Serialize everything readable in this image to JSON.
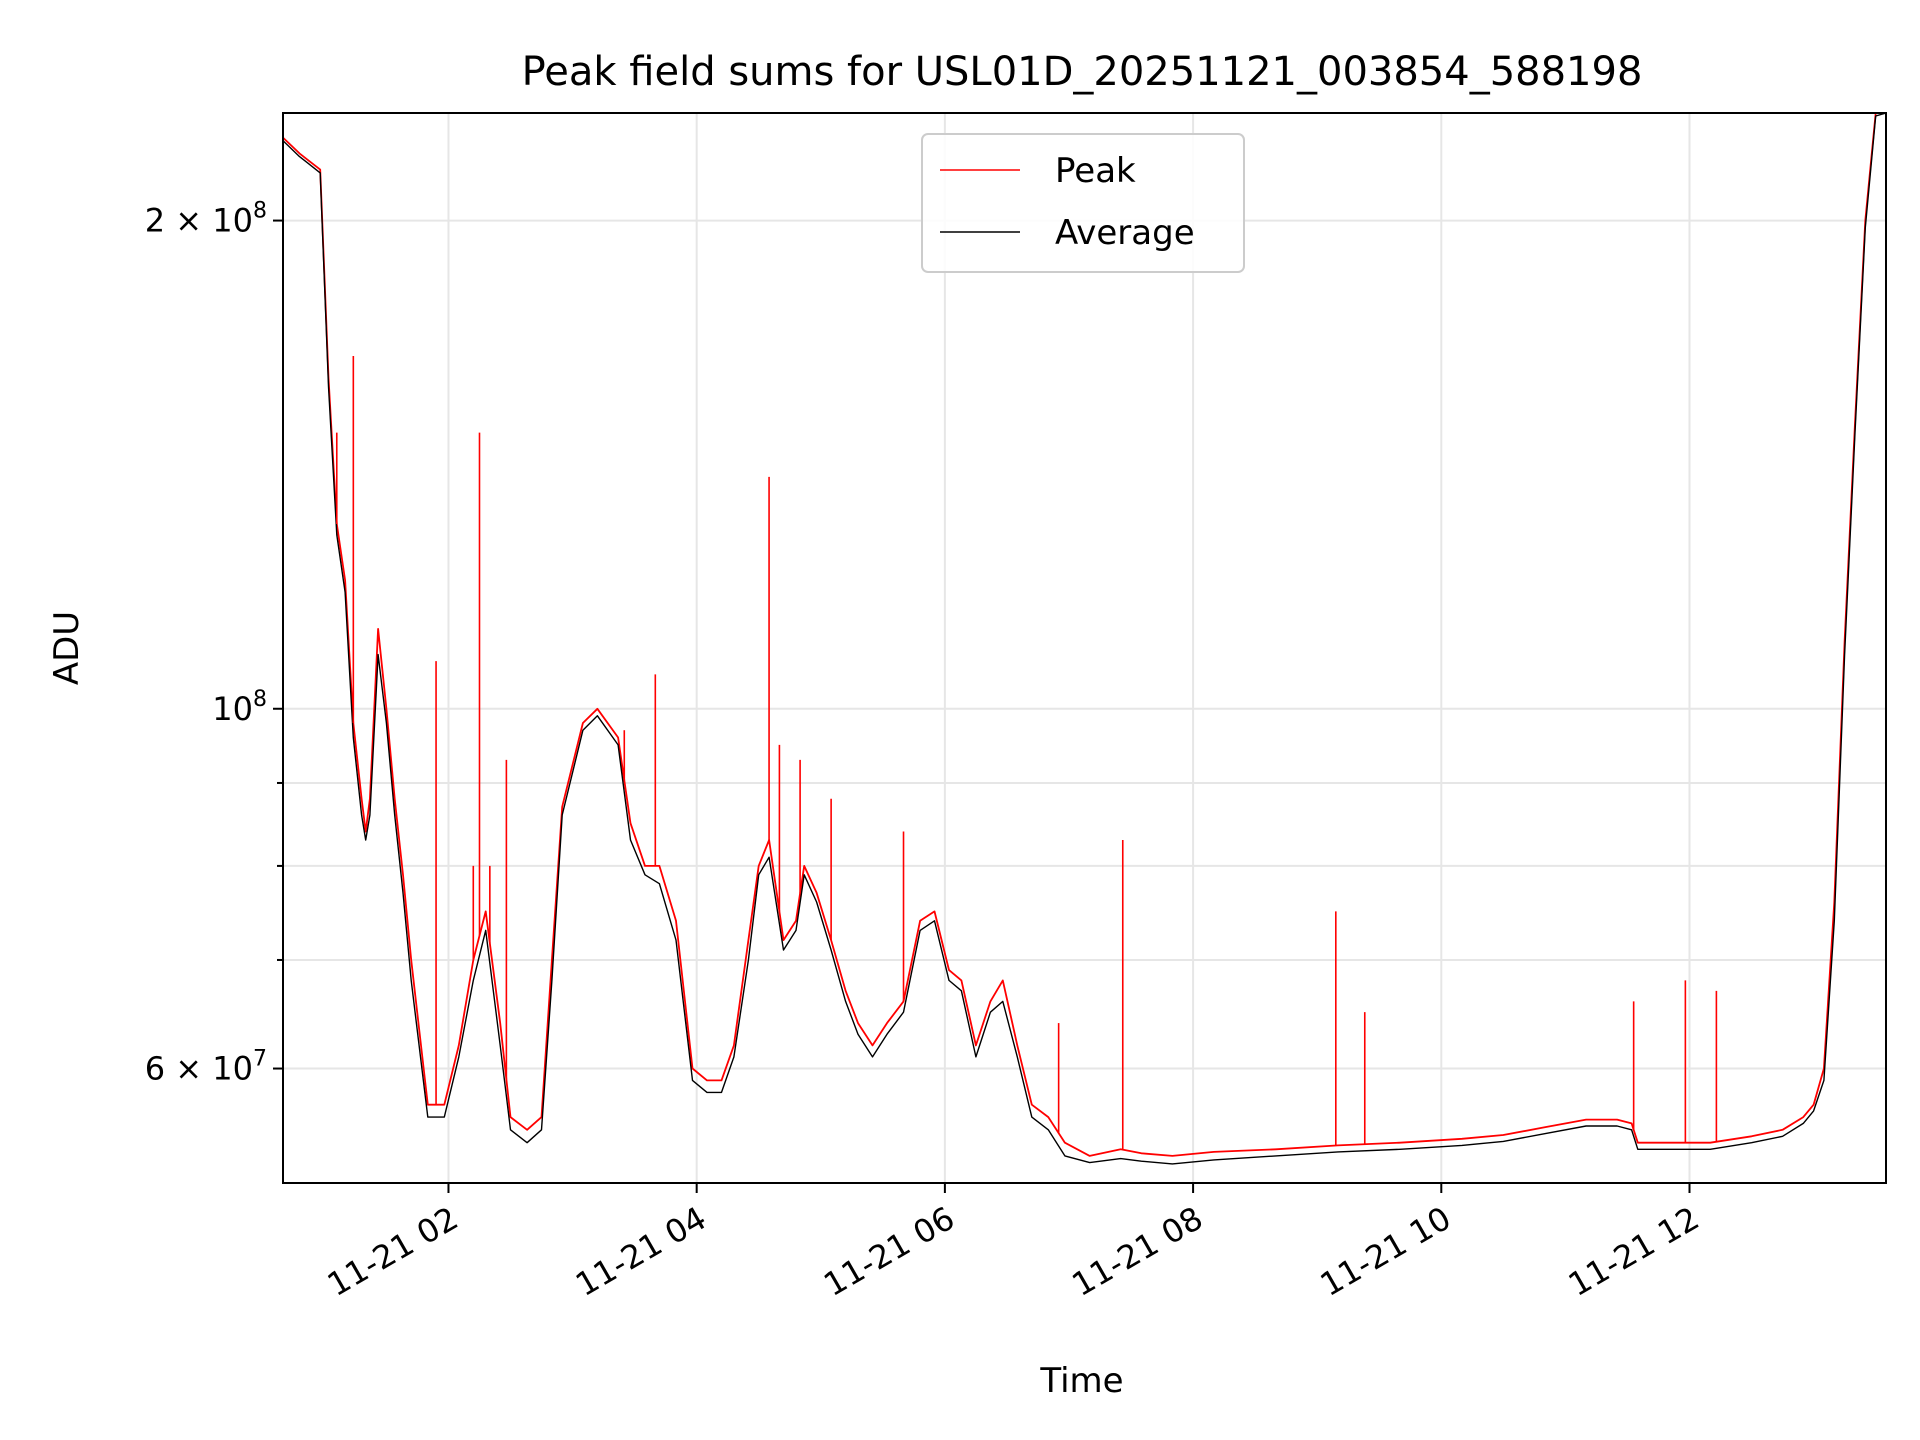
{
  "chart_data": {
    "type": "line",
    "title": "Peak field sums for USL01D_20251121_003854_588198",
    "xlabel": "Time",
    "ylabel": "ADU",
    "x_scale": "time",
    "y_scale": "log",
    "xlim": [
      "2025-11-21 00:40",
      "2025-11-21 13:35"
    ],
    "ylim": [
      51000000,
      233000000
    ],
    "grid": true,
    "legend_placement": "top-center",
    "x_ticks": [
      "11-21 02",
      "11-21 04",
      "11-21 06",
      "11-21 08",
      "11-21 10",
      "11-21 12"
    ],
    "y_tick_labels": [
      {
        "value": 60000000,
        "mantissa": "6",
        "exponent": "7"
      },
      {
        "value": 100000000,
        "mantissa": "",
        "exponent": "8"
      },
      {
        "value": 200000000,
        "mantissa": "2",
        "exponent": "8"
      }
    ],
    "y_minor_ticks": [
      70000000,
      80000000,
      90000000
    ],
    "series": [
      {
        "name": "Peak",
        "color": "#ff0000",
        "x": [
          "2025-11-21 00:40",
          "2025-11-21 00:48",
          "2025-11-21 00:52",
          "2025-11-21 00:58",
          "2025-11-21 01:02",
          "2025-11-21 01:06",
          "2025-11-21 01:10",
          "2025-11-21 01:14",
          "2025-11-21 01:18",
          "2025-11-21 01:20",
          "2025-11-21 01:22",
          "2025-11-21 01:26",
          "2025-11-21 01:30",
          "2025-11-21 01:34",
          "2025-11-21 01:38",
          "2025-11-21 01:42",
          "2025-11-21 01:50",
          "2025-11-21 01:58",
          "2025-11-21 02:05",
          "2025-11-21 02:12",
          "2025-11-21 02:18",
          "2025-11-21 02:25",
          "2025-11-21 02:30",
          "2025-11-21 02:38",
          "2025-11-21 02:45",
          "2025-11-21 02:50",
          "2025-11-21 02:55",
          "2025-11-21 03:05",
          "2025-11-21 03:12",
          "2025-11-21 03:22",
          "2025-11-21 03:28",
          "2025-11-21 03:35",
          "2025-11-21 03:42",
          "2025-11-21 03:50",
          "2025-11-21 03:58",
          "2025-11-21 04:05",
          "2025-11-21 04:12",
          "2025-11-21 04:18",
          "2025-11-21 04:25",
          "2025-11-21 04:30",
          "2025-11-21 04:35",
          "2025-11-21 04:42",
          "2025-11-21 04:48",
          "2025-11-21 04:52",
          "2025-11-21 04:58",
          "2025-11-21 05:05",
          "2025-11-21 05:12",
          "2025-11-21 05:18",
          "2025-11-21 05:25",
          "2025-11-21 05:32",
          "2025-11-21 05:40",
          "2025-11-21 05:48",
          "2025-11-21 05:55",
          "2025-11-21 06:02",
          "2025-11-21 06:08",
          "2025-11-21 06:15",
          "2025-11-21 06:22",
          "2025-11-21 06:28",
          "2025-11-21 06:35",
          "2025-11-21 06:42",
          "2025-11-21 06:50",
          "2025-11-21 06:58",
          "2025-11-21 07:10",
          "2025-11-21 07:25",
          "2025-11-21 07:35",
          "2025-11-21 07:50",
          "2025-11-21 08:10",
          "2025-11-21 08:40",
          "2025-11-21 09:10",
          "2025-11-21 09:40",
          "2025-11-21 10:10",
          "2025-11-21 10:30",
          "2025-11-21 10:50",
          "2025-11-21 11:10",
          "2025-11-21 11:25",
          "2025-11-21 11:32",
          "2025-11-21 11:35",
          "2025-11-21 11:50",
          "2025-11-21 12:10",
          "2025-11-21 12:30",
          "2025-11-21 12:45",
          "2025-11-21 12:55",
          "2025-11-21 13:00",
          "2025-11-21 13:05",
          "2025-11-21 13:10",
          "2025-11-21 13:15",
          "2025-11-21 13:20",
          "2025-11-21 13:25",
          "2025-11-21 13:30",
          "2025-11-21 13:35"
        ],
        "y": [
          225000000,
          220000000,
          218000000,
          215000000,
          160000000,
          130000000,
          120000000,
          98000000,
          88000000,
          84000000,
          88000000,
          112000000,
          100000000,
          88000000,
          79000000,
          70000000,
          57000000,
          57000000,
          62000000,
          70000000,
          75000000,
          64000000,
          56000000,
          55000000,
          56000000,
          70000000,
          87000000,
          98000000,
          100000000,
          96000000,
          85000000,
          80000000,
          80000000,
          74000000,
          60000000,
          59000000,
          59000000,
          62000000,
          72000000,
          80000000,
          83000000,
          72000000,
          74000000,
          80000000,
          77000000,
          72000000,
          67000000,
          64000000,
          62000000,
          64000000,
          66000000,
          74000000,
          75000000,
          69000000,
          68000000,
          62000000,
          66000000,
          68000000,
          62000000,
          57000000,
          56000000,
          54000000,
          53000000,
          53500000,
          53200000,
          53000000,
          53300000,
          53500000,
          53800000,
          54000000,
          54300000,
          54600000,
          55200000,
          55800000,
          55800000,
          55500000,
          54000000,
          54000000,
          54000000,
          54500000,
          55000000,
          56000000,
          57000000,
          60000000,
          76000000,
          110000000,
          150000000,
          200000000,
          233000000,
          233000000
        ]
      },
      {
        "name": "Average",
        "color": "#000000",
        "x": [
          "2025-11-21 00:40",
          "2025-11-21 00:48",
          "2025-11-21 00:52",
          "2025-11-21 00:58",
          "2025-11-21 01:02",
          "2025-11-21 01:06",
          "2025-11-21 01:10",
          "2025-11-21 01:14",
          "2025-11-21 01:18",
          "2025-11-21 01:20",
          "2025-11-21 01:22",
          "2025-11-21 01:26",
          "2025-11-21 01:30",
          "2025-11-21 01:34",
          "2025-11-21 01:38",
          "2025-11-21 01:42",
          "2025-11-21 01:50",
          "2025-11-21 01:58",
          "2025-11-21 02:05",
          "2025-11-21 02:12",
          "2025-11-21 02:18",
          "2025-11-21 02:25",
          "2025-11-21 02:30",
          "2025-11-21 02:38",
          "2025-11-21 02:45",
          "2025-11-21 02:50",
          "2025-11-21 02:55",
          "2025-11-21 03:05",
          "2025-11-21 03:12",
          "2025-11-21 03:22",
          "2025-11-21 03:28",
          "2025-11-21 03:35",
          "2025-11-21 03:42",
          "2025-11-21 03:50",
          "2025-11-21 03:58",
          "2025-11-21 04:05",
          "2025-11-21 04:12",
          "2025-11-21 04:18",
          "2025-11-21 04:25",
          "2025-11-21 04:30",
          "2025-11-21 04:35",
          "2025-11-21 04:42",
          "2025-11-21 04:48",
          "2025-11-21 04:52",
          "2025-11-21 04:58",
          "2025-11-21 05:05",
          "2025-11-21 05:12",
          "2025-11-21 05:18",
          "2025-11-21 05:25",
          "2025-11-21 05:32",
          "2025-11-21 05:40",
          "2025-11-21 05:48",
          "2025-11-21 05:55",
          "2025-11-21 06:02",
          "2025-11-21 06:08",
          "2025-11-21 06:15",
          "2025-11-21 06:22",
          "2025-11-21 06:28",
          "2025-11-21 06:35",
          "2025-11-21 06:42",
          "2025-11-21 06:50",
          "2025-11-21 06:58",
          "2025-11-21 07:10",
          "2025-11-21 07:25",
          "2025-11-21 07:35",
          "2025-11-21 07:50",
          "2025-11-21 08:10",
          "2025-11-21 08:40",
          "2025-11-21 09:10",
          "2025-11-21 09:40",
          "2025-11-21 10:10",
          "2025-11-21 10:30",
          "2025-11-21 10:50",
          "2025-11-21 11:10",
          "2025-11-21 11:25",
          "2025-11-21 11:32",
          "2025-11-21 11:35",
          "2025-11-21 11:50",
          "2025-11-21 12:10",
          "2025-11-21 12:30",
          "2025-11-21 12:45",
          "2025-11-21 12:55",
          "2025-11-21 13:00",
          "2025-11-21 13:05",
          "2025-11-21 13:10",
          "2025-11-21 13:15",
          "2025-11-21 13:20",
          "2025-11-21 13:25",
          "2025-11-21 13:30",
          "2025-11-21 13:35"
        ],
        "y": [
          224000000,
          219000000,
          217000000,
          214000000,
          158000000,
          128000000,
          118000000,
          96000000,
          86000000,
          83000000,
          86000000,
          108000000,
          98000000,
          86000000,
          77000000,
          68000000,
          56000000,
          56000000,
          61000000,
          68000000,
          73000000,
          62000000,
          55000000,
          54000000,
          55000000,
          68000000,
          86000000,
          97000000,
          99000000,
          95000000,
          83000000,
          79000000,
          78000000,
          72000000,
          59000000,
          58000000,
          58000000,
          61000000,
          70000000,
          79000000,
          81000000,
          71000000,
          73000000,
          79000000,
          76000000,
          71000000,
          66000000,
          63000000,
          61000000,
          63000000,
          65000000,
          73000000,
          74000000,
          68000000,
          67000000,
          61000000,
          65000000,
          66000000,
          61000000,
          56000000,
          55000000,
          53000000,
          52500000,
          52800000,
          52600000,
          52400000,
          52700000,
          53000000,
          53300000,
          53500000,
          53800000,
          54100000,
          54700000,
          55300000,
          55300000,
          55000000,
          53500000,
          53500000,
          53500000,
          54000000,
          54500000,
          55500000,
          56500000,
          59000000,
          74000000,
          108000000,
          148000000,
          198000000,
          232000000,
          233000000
        ]
      }
    ],
    "spikes": [
      {
        "series": "Peak",
        "x": "2025-11-21 01:06",
        "y": 148000000
      },
      {
        "series": "Peak",
        "x": "2025-11-21 01:14",
        "y": 165000000
      },
      {
        "series": "Peak",
        "x": "2025-11-21 01:54",
        "y": 107000000
      },
      {
        "series": "Peak",
        "x": "2025-11-21 02:12",
        "y": 80000000
      },
      {
        "series": "Peak",
        "x": "2025-11-21 02:15",
        "y": 148000000
      },
      {
        "series": "Peak",
        "x": "2025-11-21 02:20",
        "y": 80000000
      },
      {
        "series": "Peak",
        "x": "2025-11-21 02:28",
        "y": 93000000
      },
      {
        "series": "Peak",
        "x": "2025-11-21 03:25",
        "y": 97000000
      },
      {
        "series": "Peak",
        "x": "2025-11-21 03:40",
        "y": 105000000
      },
      {
        "series": "Peak",
        "x": "2025-11-21 04:35",
        "y": 139000000
      },
      {
        "series": "Peak",
        "x": "2025-11-21 04:40",
        "y": 95000000
      },
      {
        "series": "Peak",
        "x": "2025-11-21 04:50",
        "y": 93000000
      },
      {
        "series": "Peak",
        "x": "2025-11-21 05:05",
        "y": 88000000
      },
      {
        "series": "Peak",
        "x": "2025-11-21 05:40",
        "y": 84000000
      },
      {
        "series": "Peak",
        "x": "2025-11-21 06:55",
        "y": 64000000
      },
      {
        "series": "Peak",
        "x": "2025-11-21 07:26",
        "y": 83000000
      },
      {
        "series": "Peak",
        "x": "2025-11-21 09:09",
        "y": 75000000
      },
      {
        "series": "Peak",
        "x": "2025-11-21 09:23",
        "y": 65000000
      },
      {
        "series": "Peak",
        "x": "2025-11-21 11:33",
        "y": 66000000
      },
      {
        "series": "Peak",
        "x": "2025-11-21 11:58",
        "y": 68000000
      },
      {
        "series": "Peak",
        "x": "2025-11-21 12:13",
        "y": 67000000
      }
    ]
  }
}
